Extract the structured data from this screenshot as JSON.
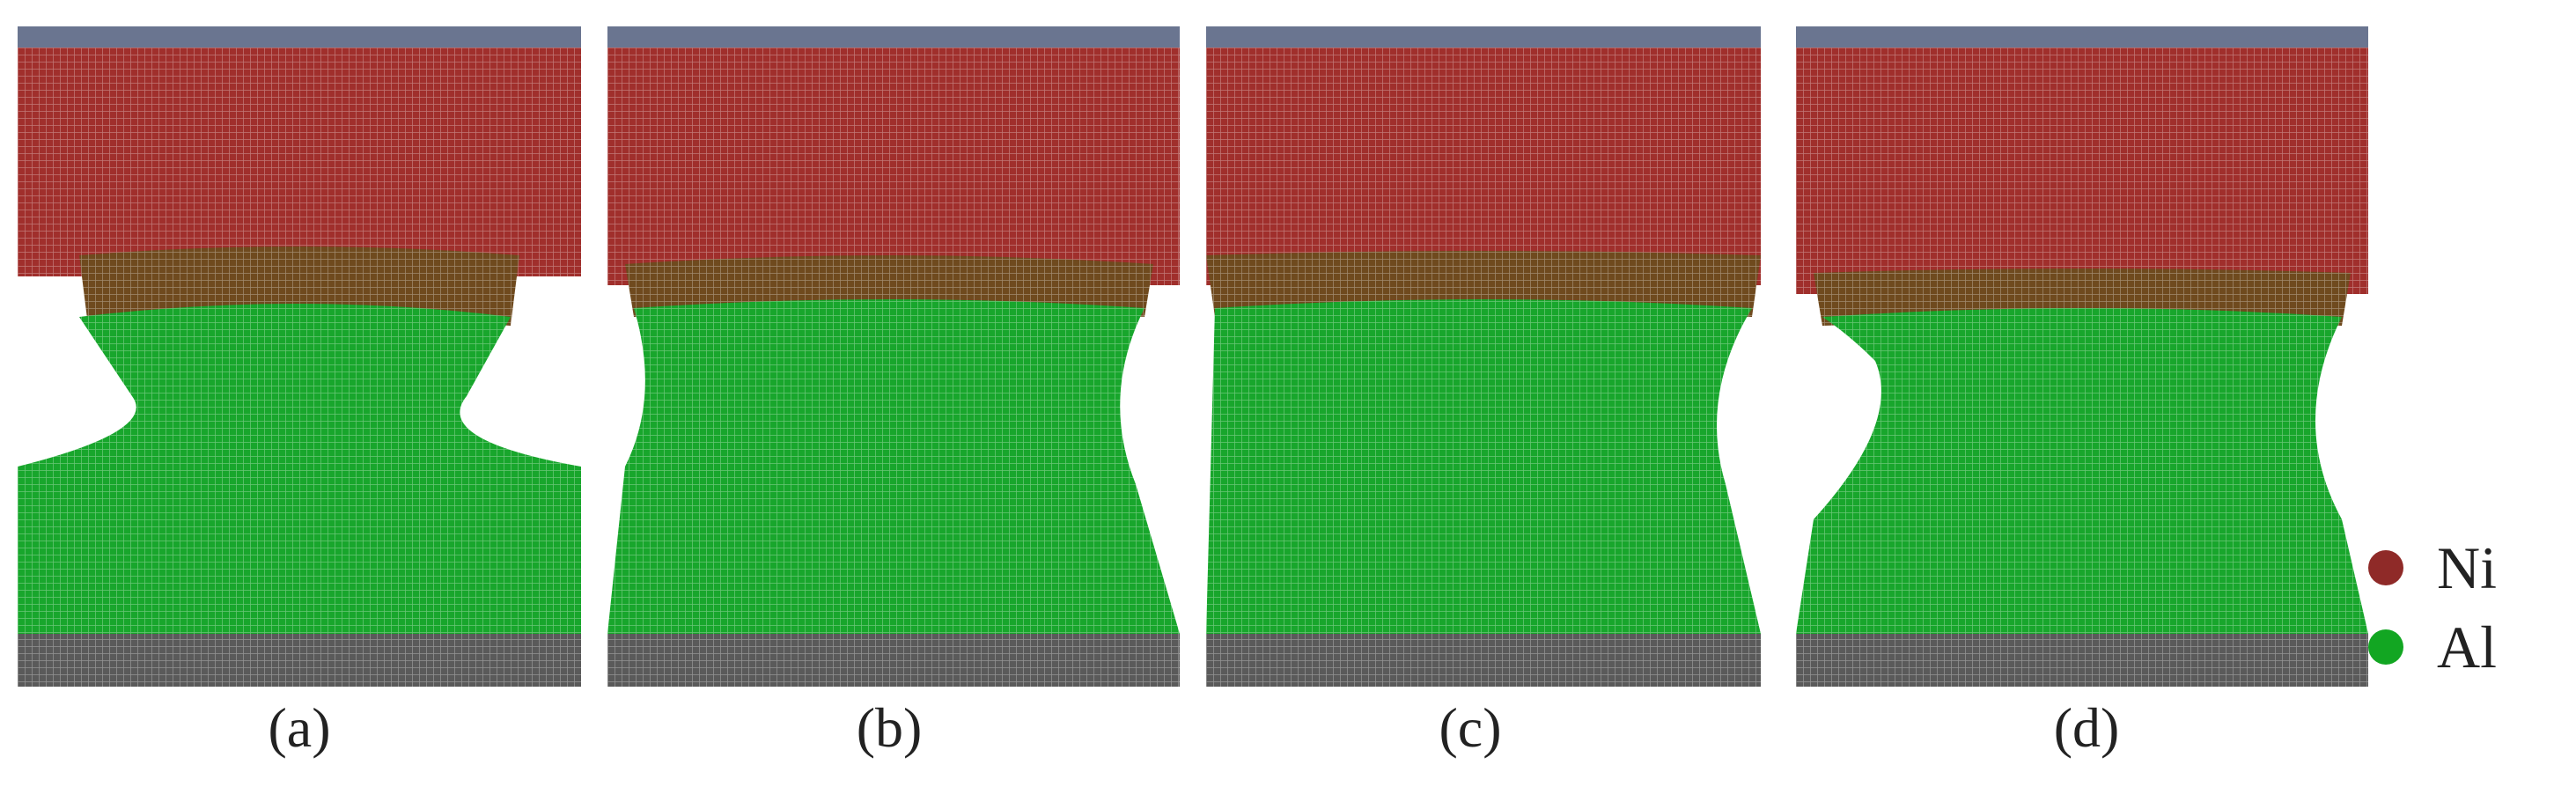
{
  "panels": [
    {
      "label": "(a)"
    },
    {
      "label": "(b)"
    },
    {
      "label": "(c)"
    },
    {
      "label": "(d)"
    }
  ],
  "legend": [
    {
      "label": "Ni",
      "color": "#8f2a28"
    },
    {
      "label": "Al",
      "color": "#12a622"
    }
  ],
  "colors": {
    "rigid_layer": "#5f6f8a",
    "ni": "#9b2c2a",
    "interface": "#6e4a1f",
    "al": "#16a42a",
    "bottom_layer": "#555555"
  }
}
